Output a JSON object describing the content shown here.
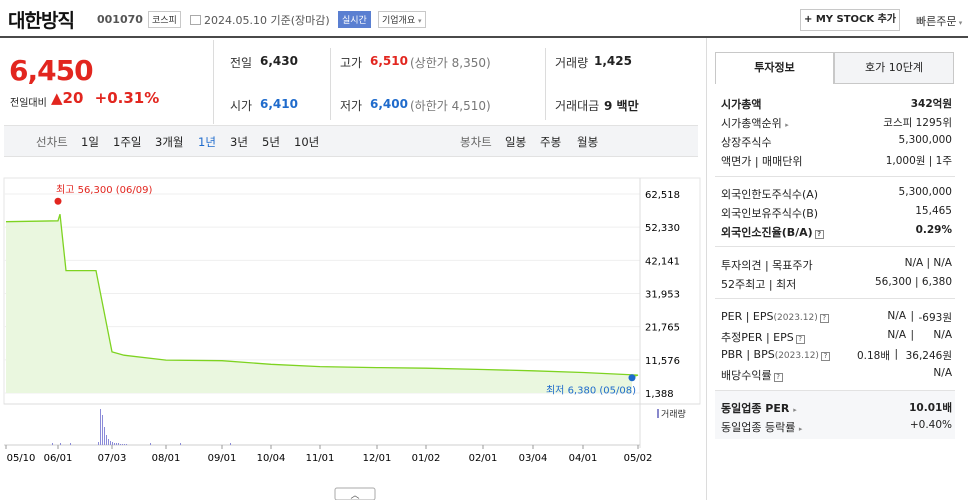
{
  "header": {
    "title": "대한방직",
    "code": "001070",
    "market_badge": "코스피",
    "date": "2024.05.10  기준(장마감)",
    "realtime": "실시간",
    "company_info": "기업개요",
    "mystock_label": "+ MY STOCK 추가",
    "quick_order": "빠른주문"
  },
  "quote": {
    "price": "6,450",
    "change_label": "전일대비",
    "change": "20",
    "change_pct": "+0.31%",
    "prev_label": "전일",
    "prev": "6,430",
    "high_label": "고가",
    "high": "6,510",
    "upper_limit": "(상한가 8,350)",
    "volume_label": "거래량",
    "volume": "1,425",
    "open_label": "시가",
    "open": "6,410",
    "low_label": "저가",
    "low": "6,400",
    "lower_limit": "(하한가 4,510)",
    "amount_label": "거래대금",
    "amount": "9 백만"
  },
  "periodbar": {
    "line_chart_label": "선차트",
    "periods": [
      "1일",
      "1주일",
      "3개월",
      "1년",
      "3년",
      "5년",
      "10년"
    ],
    "selected": "1년",
    "candle_label": "봉차트",
    "candles": [
      "일봉",
      "주봉",
      "월봉"
    ]
  },
  "chart_data": {
    "type": "area",
    "yticks": [
      62518,
      52330,
      42141,
      31953,
      21765,
      11576,
      1388
    ],
    "ylim": [
      1388,
      62518
    ],
    "x": [
      "05/10",
      "06/01",
      "06/09",
      "06/11",
      "07/01",
      "07/03",
      "07/08",
      "08/01",
      "09/01",
      "10/04",
      "11/01",
      "12/01",
      "01/02",
      "02/01",
      "03/04",
      "04/01",
      "05/02",
      "05/08"
    ],
    "y": [
      54000,
      54300,
      56300,
      39000,
      39000,
      14000,
      13000,
      11500,
      11300,
      10200,
      9500,
      9200,
      9000,
      8600,
      8200,
      7700,
      6900,
      6380
    ],
    "xtick_labels": [
      "05/10",
      "06/01",
      "07/03",
      "08/01",
      "09/01",
      "10/04",
      "11/01",
      "12/01",
      "01/02",
      "02/01",
      "03/04",
      "04/01",
      "05/02"
    ],
    "max_label": "최고 56,300 (06/09)",
    "min_label": "최저 6,380 (05/08)",
    "volume_legend": "거래량",
    "line_color": "#7ed321",
    "fill_color": "#eaf7df"
  },
  "invest": {
    "tab_active": "투자정보",
    "tab_other": "호가 10단계",
    "rows1": [
      {
        "label": "시가총액",
        "value": "342억원",
        "bold": true
      },
      {
        "label": "시가총액순위",
        "value": "코스피 1295위"
      },
      {
        "label": "상장주식수",
        "value": "5,300,000"
      },
      {
        "label": "액면가 | 매매단위",
        "value": "1,000원 | 1주"
      }
    ],
    "rows2": [
      {
        "label": "외국인한도주식수(A)",
        "value": "5,300,000"
      },
      {
        "label": "외국인보유주식수(B)",
        "value": "15,465"
      },
      {
        "label": "외국인소진율(B/A)",
        "value": "0.29%",
        "bold": true
      }
    ],
    "rows3": [
      {
        "label": "투자의견 | 목표주가",
        "value": "N/A | N/A"
      },
      {
        "label": "52주최고 | 최저",
        "value": "56,300 | 6,380"
      }
    ],
    "rows4": [
      {
        "label": "PER | EPS",
        "sub": "(2023.12)",
        "value1": "N/A",
        "value2": "-693원"
      },
      {
        "label": "추정PER | EPS",
        "sub": "",
        "value1": "N/A",
        "value2": "N/A"
      },
      {
        "label": "PBR | BPS",
        "sub": "(2023.12)",
        "value1": "0.18배",
        "value2": "36,246원"
      },
      {
        "label": "배당수익률",
        "sub": "",
        "value1": "",
        "value2": "N/A"
      }
    ],
    "industry_per_label": "동일업종 PER",
    "industry_per": "10.01배",
    "industry_rate_label": "동일업종 등락률",
    "industry_rate": "+0.40%"
  }
}
